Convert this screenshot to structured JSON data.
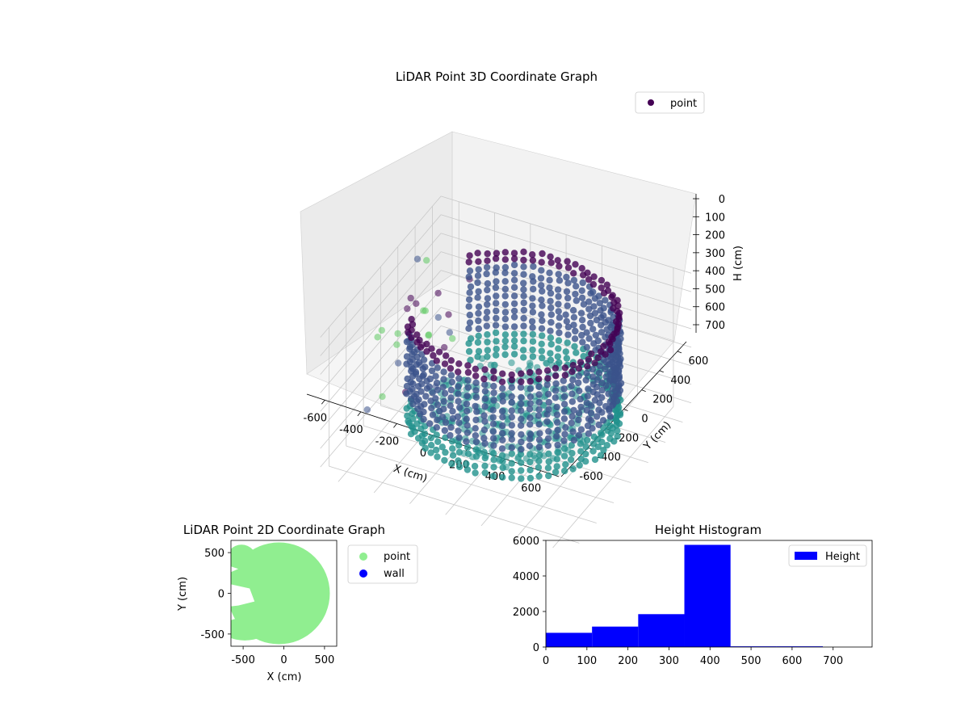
{
  "chart_data": [
    {
      "type": "scatter",
      "title": "LiDAR Point 3D Coordinate Graph",
      "xlabel": "X (cm)",
      "ylabel": "Y (cm)",
      "zlabel": "H (cm)",
      "xlim": [
        -700,
        700
      ],
      "ylim": [
        -700,
        700
      ],
      "zlim": [
        0,
        750
      ],
      "z_inverted": true,
      "x_ticks": [
        -600,
        -400,
        -200,
        0,
        200,
        400,
        600
      ],
      "y_ticks": [
        -600,
        -400,
        -200,
        0,
        200,
        400,
        600
      ],
      "z_ticks": [
        0,
        100,
        200,
        300,
        400,
        500,
        600,
        700
      ],
      "legend": [
        "point"
      ],
      "legend_position": "upper-right",
      "grid": true,
      "colormap": [
        "#440154",
        "#3b528b",
        "#21918c",
        "#5ec962"
      ],
      "marker_color": "#440154"
    },
    {
      "type": "scatter",
      "title": "LiDAR Point 2D Coordinate Graph",
      "xlabel": "X (cm)",
      "ylabel": "Y (cm)",
      "xlim": [
        -650,
        650
      ],
      "ylim": [
        -650,
        650
      ],
      "x_ticks": [
        -500,
        0,
        500
      ],
      "y_ticks": [
        -500,
        0,
        500
      ],
      "series": [
        {
          "name": "point",
          "color": "#90ee90"
        },
        {
          "name": "wall",
          "color": "#0000ff"
        }
      ],
      "legend_position": "outside-right",
      "grid": false
    },
    {
      "type": "bar",
      "title": "Height Histogram",
      "bin_width": 112.5,
      "bin_edges": [
        0,
        112.5,
        225,
        337.5,
        450,
        562.5,
        675
      ],
      "values": [
        800,
        1150,
        1850,
        5750,
        40,
        40
      ],
      "x_ticks": [
        0,
        100,
        200,
        300,
        400,
        500,
        600,
        700
      ],
      "y_ticks": [
        0,
        2000,
        4000,
        6000
      ],
      "xlim": [
        0,
        795
      ],
      "ylim": [
        0,
        6000
      ],
      "legend": [
        "Height"
      ],
      "legend_position": "upper-right",
      "color": "#0000ff"
    }
  ]
}
